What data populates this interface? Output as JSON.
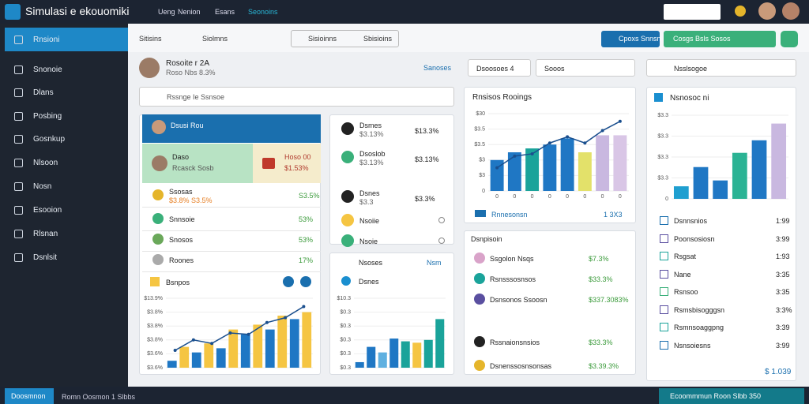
{
  "header": {
    "title": "Simulasi e ekouomiki",
    "nav": [
      "Ueng",
      "Nenion",
      "Esans",
      "Seonoins"
    ]
  },
  "sidebar": [
    "Rnsioni",
    "Snonoie",
    "Dlans",
    "Posbing",
    "Gosnkup",
    "Nlsoon",
    "Nosn",
    "Esooion",
    "Rlsnan",
    "Dsnlsit"
  ],
  "toolbar": {
    "tabs": [
      "Sitisins",
      "Siolmns",
      "Sisioinns",
      "Sbisioins"
    ],
    "buttons": [
      "Cpoxs Snnsn",
      "Cosgs Bsls Sosos"
    ]
  },
  "profile": {
    "name": "Rosoite r 2A",
    "meta": "Roso Nbs 8.3%",
    "filters": [
      "Sanoses",
      "Dsoosoes 4",
      "Sooos",
      "Nsslsogoe"
    ]
  },
  "search": "Rssnge Ie Ssnsoe",
  "col1": {
    "header": "Dsusi Rou",
    "card_a": "Daso",
    "card_a_sub": "Rcasck Sosb",
    "card_b": "Hoso 00",
    "card_b_value": "$1.53%",
    "rows": [
      {
        "label": "Ssosas",
        "sub": "$3.8% S3.5%",
        "value": "S3.5%"
      },
      {
        "label": "Snnsoie",
        "value": "53%"
      },
      {
        "label": "Snosos",
        "value": "53%"
      },
      {
        "label": "Roones",
        "value": "17%"
      }
    ],
    "chart": {
      "title": "Bsnpos",
      "ylabels": [
        "$13.9%",
        "$3.8%",
        "$3.8%",
        "$3.8%",
        "$3.6%",
        "$3.6%"
      ],
      "bars": [
        10,
        30,
        22,
        35,
        28,
        55,
        48,
        62,
        55,
        75,
        70,
        80
      ],
      "colors": [
        "#1f77c4",
        "#f5c542",
        "#1f77c4",
        "#f5c542",
        "#1f77c4",
        "#f5c542",
        "#1f77c4",
        "#f5c542",
        "#1f77c4",
        "#f5c542",
        "#1f77c4",
        "#f5c542"
      ],
      "line": [
        25,
        40,
        35,
        50,
        48,
        65,
        72,
        88
      ]
    }
  },
  "col2": {
    "rows": [
      {
        "label": "Dsmes",
        "sub": "$3.13%",
        "value": "$13.3%"
      },
      {
        "label": "Dsoslob",
        "sub": "$3.13%",
        "value": "$3.13%"
      },
      {
        "label": "Dsnes",
        "sub": "$3.3",
        "value": "$3.3%"
      },
      {
        "label": "Nsoiie"
      },
      {
        "label": "Nsoie"
      }
    ],
    "chart": {
      "title": "Nsoses",
      "title2": "Nsm",
      "subtitle": "Dsnes",
      "ylabels": [
        "$10.3",
        "$0.3",
        "$0.3",
        "$0.3",
        "$0.3",
        "$0.3"
      ],
      "bars": [
        8,
        30,
        22,
        42,
        38,
        36,
        40,
        70
      ],
      "colors": [
        "#1f77c4",
        "#1f77c4",
        "#5fb0e0",
        "#1f77c4",
        "#1aa39a",
        "#f5c542",
        "#1aa39a",
        "#1aa39a"
      ]
    }
  },
  "col3": {
    "chart": {
      "title": "Rnsisos Rooings",
      "ylabels": [
        "$30",
        "$3.5",
        "$3.5",
        "$3",
        "$3",
        "0"
      ],
      "xlabels": [
        "0",
        "0",
        "0",
        "0",
        "0",
        "0",
        "0",
        "0"
      ],
      "bars": [
        40,
        50,
        55,
        60,
        68,
        50,
        72,
        72
      ],
      "colors": [
        "#1f77c4",
        "#1f77c4",
        "#1aa39a",
        "#1f77c4",
        "#1f77c4",
        "#e3e16a",
        "#c9b8e0",
        "#d9c6e6"
      ],
      "line": [
        30,
        45,
        48,
        62,
        70,
        62,
        78,
        90
      ],
      "footer": "Rnnesonsn",
      "footer_value": "1 3X3"
    },
    "list_title": "Dsnpisoin",
    "rows": [
      {
        "label": "Ssgolon Nsqs",
        "value": "$7.3%"
      },
      {
        "label": "Rsnsssosnsos",
        "value": "$33.3%"
      },
      {
        "label": "Dsnsonos Ssoosn",
        "value": "$337.3083%"
      },
      {
        "label": "Rssnaionsnsios",
        "value": "$33.3%"
      },
      {
        "label": "Dsnenssosnsonsas",
        "value": "$3.39.3%"
      }
    ]
  },
  "col4": {
    "chart": {
      "title": "Nsnosoc ni",
      "ylabels": [
        "$3.3",
        "$3.3",
        "$3.3",
        "$3.3",
        "0"
      ],
      "bars": [
        15,
        38,
        22,
        55,
        70,
        90
      ],
      "colors": [
        "#1f9fd0",
        "#1f77c4",
        "#1f77c4",
        "#2bb394",
        "#1f77c4",
        "#c9b8e0"
      ]
    },
    "rows": [
      {
        "label": "Dsnnsnios",
        "value": "1:99"
      },
      {
        "label": "Poonsosiosn",
        "value": "3:99"
      },
      {
        "label": "Rsgsat",
        "value": "1:93"
      },
      {
        "label": "Nane",
        "value": "3:35"
      },
      {
        "label": "Rsnsoo",
        "value": "3:35"
      },
      {
        "label": "Rsmsbisogggsn",
        "value": "3:3%"
      },
      {
        "label": "Rsmnsoaggpng",
        "value": "3:39"
      },
      {
        "label": "Nsnsoiesns",
        "value": "3:99"
      }
    ],
    "total": "$ 1.039"
  },
  "status": {
    "left": "Doosmnon",
    "text": "Romn Oosmon 1 Slbbs",
    "right": "Ecoommmun Roon Slbb 350"
  }
}
